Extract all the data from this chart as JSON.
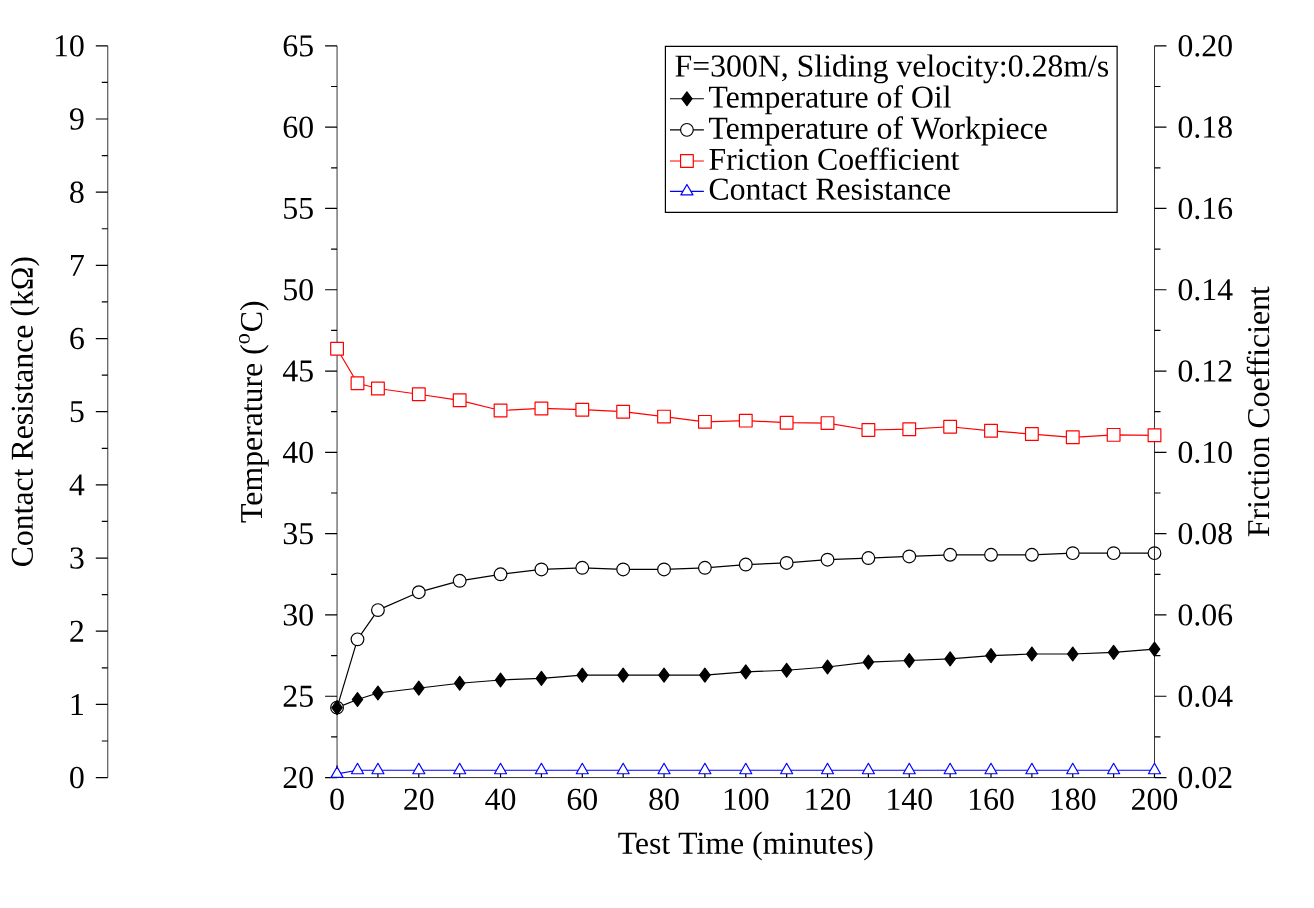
{
  "chart_data": {
    "type": "line",
    "xlabel": "Test Time (minutes)",
    "ylabel": "Temperature ($^{o}$C)",
    "y2label": "Friction Coefficient",
    "y3label": "Contact Resistance (kΩ)",
    "legend_title": "F=300N, Sliding velocity:0.28m/s",
    "legend": "top right",
    "line_style": "solid",
    "x": [
      0,
      5,
      10,
      20,
      30,
      40,
      50,
      60,
      70,
      80,
      90,
      100,
      110,
      120,
      130,
      140,
      150,
      160,
      170,
      180,
      190,
      200
    ],
    "series": [
      {
        "name": "Temperature of Oil",
        "color": "#000000",
        "marker": "diamond",
        "axis": "y",
        "values": [
          24.3,
          24.8,
          25.2,
          25.5,
          25.8,
          26.0,
          26.1,
          26.3,
          26.3,
          26.3,
          26.3,
          26.5,
          26.6,
          26.8,
          27.1,
          27.2,
          27.3,
          27.5,
          27.6,
          27.6,
          27.7,
          27.9
        ]
      },
      {
        "name": "Temperature of Workpiece",
        "color": "#000000",
        "marker": "circle",
        "axis": "y",
        "values": [
          24.3,
          28.5,
          30.3,
          31.4,
          32.1,
          32.5,
          32.8,
          32.9,
          32.8,
          32.8,
          32.9,
          33.1,
          33.2,
          33.4,
          33.5,
          33.6,
          33.7,
          33.7,
          33.7,
          33.8,
          33.8,
          33.8
        ]
      },
      {
        "name": "Friction Coefficient",
        "color": "#ff0000",
        "marker": "square",
        "axis": "y2",
        "values": [
          0.1255,
          0.117,
          0.1157,
          0.1143,
          0.1128,
          0.1103,
          0.1108,
          0.1105,
          0.11,
          0.1088,
          0.1075,
          0.1078,
          0.1073,
          0.1072,
          0.1055,
          0.1057,
          0.1063,
          0.1053,
          0.1045,
          0.1037,
          0.1043,
          0.1042
        ]
      },
      {
        "name": "Contact Resistance",
        "color": "#0000ff",
        "marker": "triangle",
        "axis": "y3",
        "values": [
          0.05,
          0.1,
          0.1,
          0.1,
          0.1,
          0.1,
          0.1,
          0.1,
          0.1,
          0.1,
          0.1,
          0.1,
          0.1,
          0.1,
          0.1,
          0.1,
          0.1,
          0.1,
          0.1,
          0.1,
          0.1,
          0.1
        ]
      }
    ],
    "xlim": [
      0,
      200
    ],
    "xticks": [
      0,
      20,
      40,
      60,
      80,
      100,
      120,
      140,
      160,
      180,
      200
    ],
    "ylim": [
      20,
      65
    ],
    "yticks": [
      20,
      25,
      30,
      35,
      40,
      45,
      50,
      55,
      60,
      65
    ],
    "y2lim": [
      0.02,
      0.2
    ],
    "y2ticks": [
      0.02,
      0.04,
      0.06,
      0.08,
      {
        "value": 0.1,
        "label": "0.10"
      },
      0.12,
      0.14,
      0.16,
      0.18,
      {
        "value": 0.2,
        "label": "0.20"
      }
    ],
    "y3lim": [
      0,
      10
    ],
    "y3ticks": [
      0,
      1,
      2,
      3,
      4,
      5,
      6,
      7,
      8,
      9,
      10
    ]
  }
}
